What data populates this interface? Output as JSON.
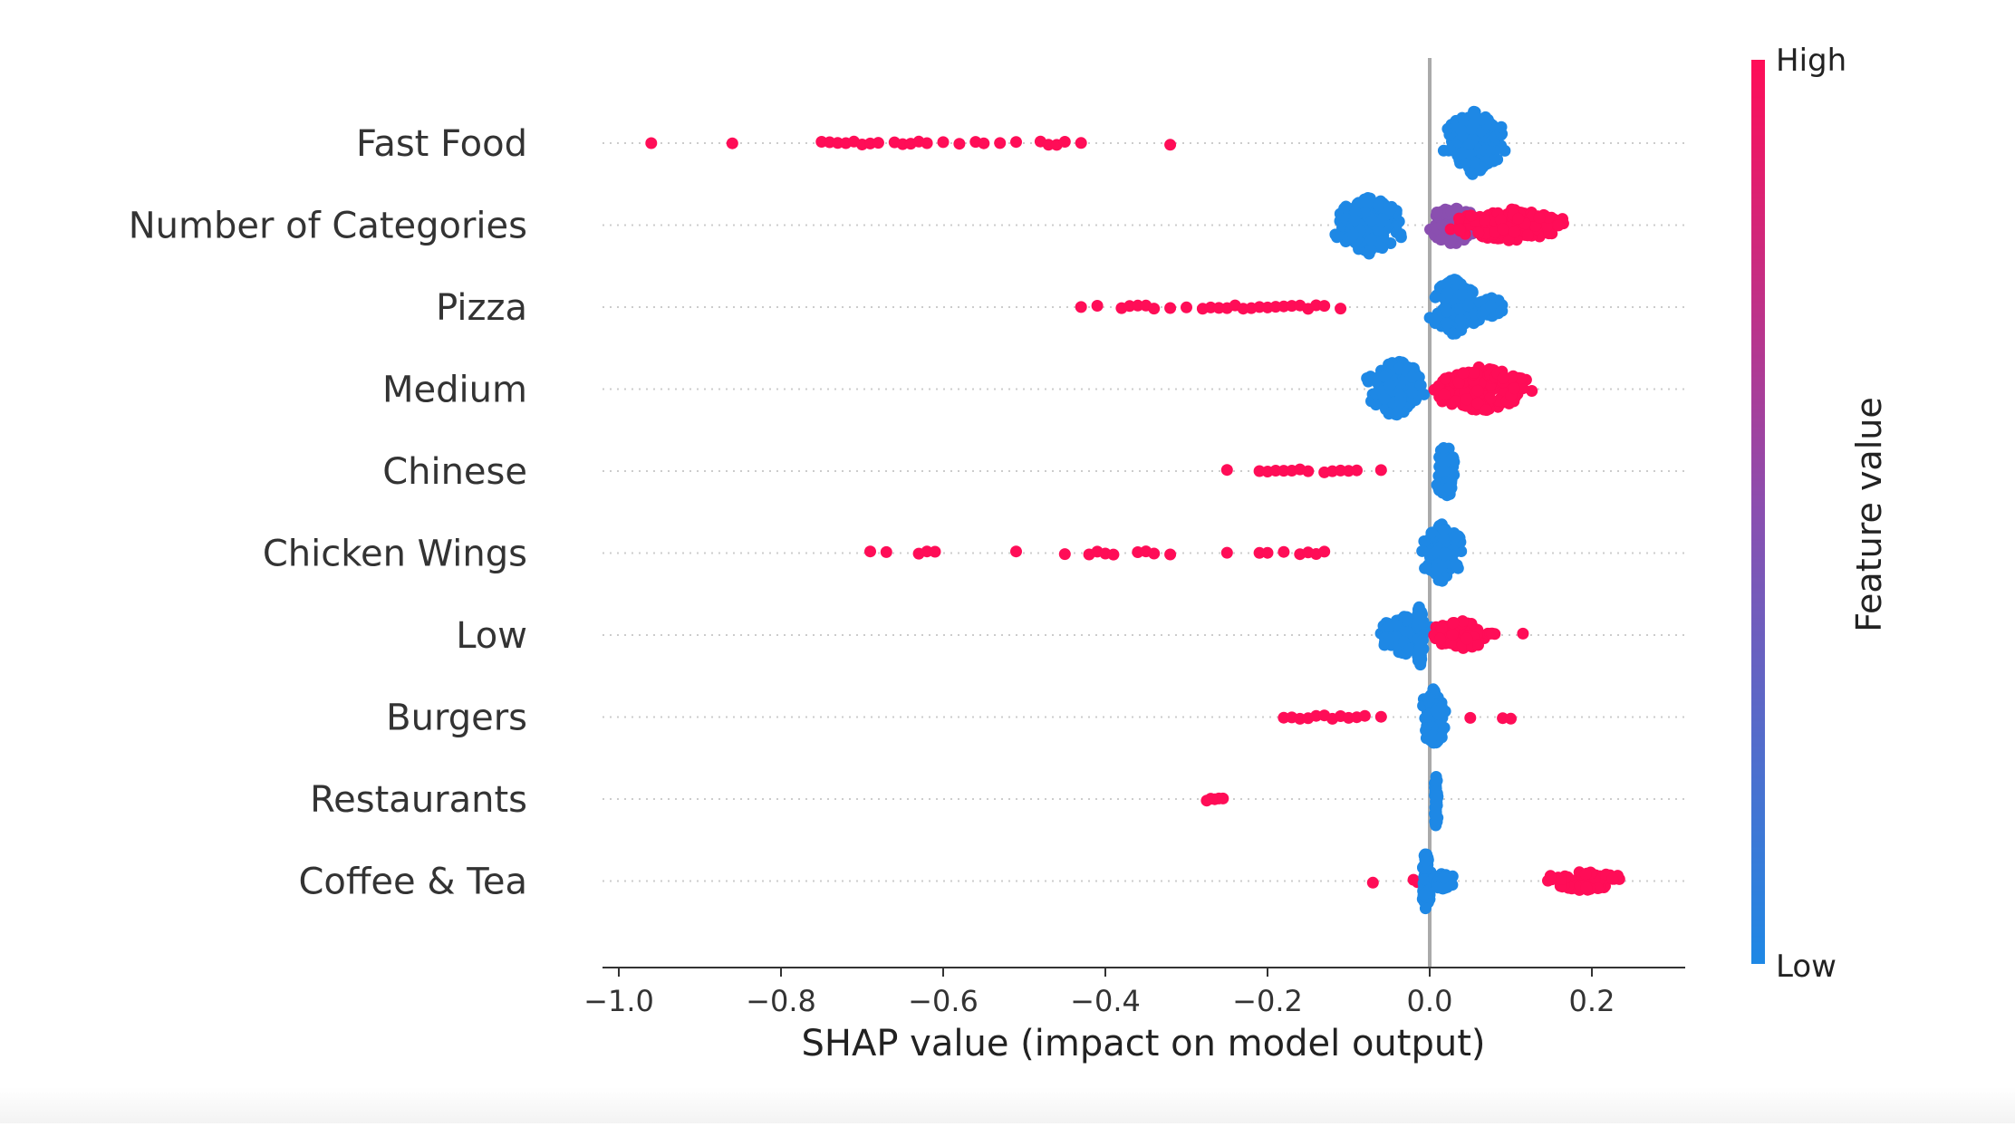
{
  "chart_data": {
    "type": "scatter",
    "subtype": "shap-beeswarm-summary",
    "title": "",
    "xlabel": "SHAP value (impact on model output)",
    "ylabel": "",
    "xlim": [
      -1.02,
      0.32
    ],
    "xticks": [
      -1.0,
      -0.8,
      -0.6,
      -0.4,
      -0.2,
      0.0,
      0.2
    ],
    "xtick_labels": [
      "−1.0",
      "−0.8",
      "−0.6",
      "−0.4",
      "−0.2",
      "0.0",
      "0.2"
    ],
    "zero_line": true,
    "grid": "horizontal dotted per feature",
    "colors": {
      "high": "#ff0d57",
      "low": "#1e88e5",
      "mid": "#8a4fb0",
      "zero_line": "#aaaaaa"
    },
    "colorbar": {
      "label": "Feature value",
      "high_label": "High",
      "low_label": "Low",
      "placement": "right"
    },
    "features": [
      {
        "name": "Fast Food",
        "clusters": [
          {
            "level": "high",
            "x": [
              -0.96,
              -0.86,
              -0.75,
              -0.74,
              -0.73,
              -0.72,
              -0.71,
              -0.7,
              -0.69,
              -0.68,
              -0.66,
              -0.65,
              -0.64,
              -0.63,
              -0.62,
              -0.6,
              -0.58,
              -0.56,
              -0.55,
              -0.53,
              -0.51,
              -0.48,
              -0.47,
              -0.46,
              -0.45,
              -0.43,
              -0.32
            ]
          },
          {
            "level": "low",
            "center": 0.055,
            "spread": 0.045,
            "height": 1.0
          }
        ]
      },
      {
        "name": "Number of Categories",
        "clusters": [
          {
            "level": "low",
            "center": -0.075,
            "spread": 0.05,
            "height": 0.9
          },
          {
            "level": "mid",
            "center": 0.03,
            "spread": 0.04,
            "height": 0.6
          },
          {
            "level": "high",
            "center": 0.1,
            "spread": 0.09,
            "height": 0.5
          }
        ]
      },
      {
        "name": "Pizza",
        "clusters": [
          {
            "level": "high",
            "x": [
              -0.43,
              -0.41,
              -0.38,
              -0.37,
              -0.36,
              -0.35,
              -0.34,
              -0.32,
              -0.3,
              -0.28,
              -0.27,
              -0.26,
              -0.25,
              -0.24,
              -0.23,
              -0.22,
              -0.21,
              -0.2,
              -0.19,
              -0.18,
              -0.17,
              -0.16,
              -0.15,
              -0.14,
              -0.13,
              -0.11
            ]
          },
          {
            "level": "low",
            "center": 0.03,
            "spread": 0.035,
            "height": 0.9
          },
          {
            "level": "low",
            "center": 0.075,
            "spread": 0.02,
            "height": 0.3
          }
        ]
      },
      {
        "name": "Medium",
        "clusters": [
          {
            "level": "low",
            "center": -0.04,
            "spread": 0.045,
            "height": 0.9
          },
          {
            "level": "high",
            "center": 0.065,
            "spread": 0.07,
            "height": 0.7
          }
        ]
      },
      {
        "name": "Chinese",
        "clusters": [
          {
            "level": "high",
            "x": [
              -0.25,
              -0.21,
              -0.2,
              -0.19,
              -0.18,
              -0.17,
              -0.16,
              -0.15,
              -0.13,
              -0.12,
              -0.11,
              -0.1,
              -0.09,
              -0.06
            ]
          },
          {
            "level": "low",
            "center": 0.02,
            "spread": 0.015,
            "height": 0.9
          }
        ]
      },
      {
        "name": "Chicken Wings",
        "clusters": [
          {
            "level": "high",
            "x": [
              -0.69,
              -0.67,
              -0.63,
              -0.62,
              -0.61,
              -0.51,
              -0.45,
              -0.42,
              -0.41,
              -0.4,
              -0.39,
              -0.36,
              -0.35,
              -0.34,
              -0.32,
              -0.25,
              -0.21,
              -0.2,
              -0.18,
              -0.16,
              -0.15,
              -0.14,
              -0.13
            ]
          },
          {
            "level": "low",
            "center": 0.015,
            "spread": 0.03,
            "height": 0.9
          }
        ]
      },
      {
        "name": "Low",
        "clusters": [
          {
            "level": "low",
            "center": -0.03,
            "spread": 0.04,
            "height": 0.6
          },
          {
            "level": "low",
            "center": -0.012,
            "spread": 0.006,
            "height": 1.0
          },
          {
            "level": "high",
            "center": 0.04,
            "spread": 0.045,
            "height": 0.45
          },
          {
            "level": "high",
            "x": [
              0.075,
              0.077,
              0.115
            ]
          }
        ]
      },
      {
        "name": "Burgers",
        "clusters": [
          {
            "level": "high",
            "x": [
              -0.18,
              -0.17,
              -0.16,
              -0.15,
              -0.14,
              -0.13,
              -0.12,
              -0.11,
              -0.1,
              -0.09,
              -0.08,
              -0.06
            ]
          },
          {
            "level": "low",
            "center": 0.005,
            "spread": 0.02,
            "height": 0.9
          },
          {
            "level": "high",
            "x": [
              0.05,
              0.09,
              0.1
            ]
          }
        ]
      },
      {
        "name": "Restaurants",
        "clusters": [
          {
            "level": "high",
            "x": [
              -0.275,
              -0.27,
              -0.265,
              -0.26,
              -0.255
            ]
          },
          {
            "level": "low",
            "center": 0.008,
            "spread": 0.003,
            "height": 0.9
          }
        ]
      },
      {
        "name": "Coffee & Tea",
        "clusters": [
          {
            "level": "high",
            "x": [
              -0.07,
              -0.02,
              -0.015
            ]
          },
          {
            "level": "low",
            "center": -0.005,
            "spread": 0.008,
            "height": 0.9
          },
          {
            "level": "low",
            "center": 0.015,
            "spread": 0.02,
            "height": 0.25
          },
          {
            "level": "high",
            "center": 0.19,
            "spread": 0.06,
            "height": 0.3
          }
        ]
      }
    ]
  }
}
